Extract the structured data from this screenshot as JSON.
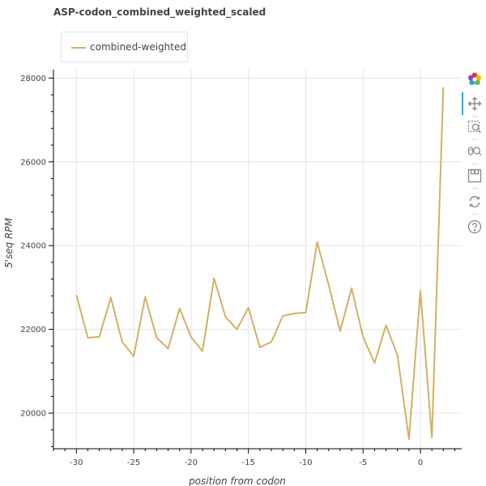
{
  "title": "ASP-codon_combined_weighted_scaled",
  "toolbar": {
    "tools": [
      "bokeh-logo-icon",
      "pan-icon",
      "box-zoom-icon",
      "wheel-zoom-icon",
      "save-icon",
      "reset-icon",
      "help-icon"
    ]
  },
  "chart_data": {
    "type": "line",
    "title": "ASP-codon_combined_weighted_scaled",
    "xlabel": "position from codon",
    "ylabel": "5'seq RPM",
    "xlim": [
      -32.0,
      3.6
    ],
    "ylim": [
      19150,
      28200
    ],
    "xticks": [
      -30,
      -25,
      -20,
      -15,
      -10,
      -5,
      0
    ],
    "yticks": [
      20000,
      22000,
      24000,
      26000,
      28000
    ],
    "grid": true,
    "legend_position": "top-left",
    "series": [
      {
        "name": "combined-weighted",
        "color": "#d4b062",
        "x": [
          -30,
          -29,
          -28,
          -27,
          -26,
          -25,
          -24,
          -23,
          -22,
          -21,
          -20,
          -19,
          -18,
          -17,
          -16,
          -15,
          -14,
          -13,
          -12,
          -11,
          -10,
          -9,
          -8,
          -7,
          -6,
          -5,
          -4,
          -3,
          -2,
          -1,
          0,
          1,
          2
        ],
        "y": [
          22820,
          21800,
          21820,
          22760,
          21700,
          21360,
          22780,
          21800,
          21540,
          22500,
          21820,
          21480,
          23220,
          22300,
          22000,
          22520,
          21570,
          21700,
          22320,
          22380,
          22400,
          24080,
          23060,
          21960,
          22980,
          21820,
          21200,
          22100,
          21380,
          19380,
          22920,
          19420,
          27780
        ]
      }
    ]
  }
}
